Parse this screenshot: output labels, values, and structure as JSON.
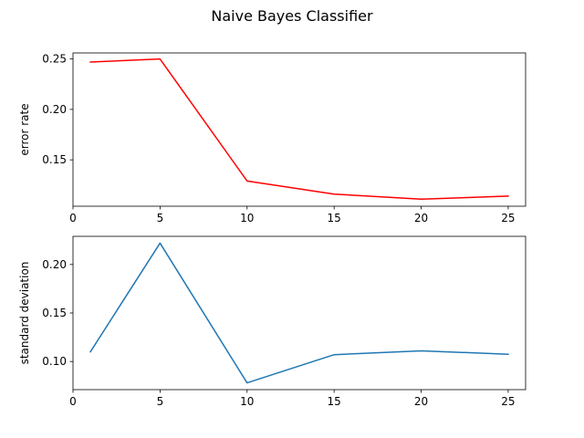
{
  "figure": {
    "title": "Naive Bayes Classifier"
  },
  "chart_data": [
    {
      "type": "line",
      "title": "",
      "xlabel": "",
      "ylabel": "error rate",
      "x": [
        1,
        5,
        10,
        15,
        20,
        25
      ],
      "series": [
        {
          "values": [
            0.247,
            0.25,
            0.129,
            0.116,
            0.111,
            0.114
          ],
          "color": "#ff0000"
        }
      ],
      "xlim": [
        0,
        26
      ],
      "ylim": [
        0.104,
        0.256
      ],
      "xticks": [
        0,
        5,
        10,
        15,
        20,
        25
      ],
      "yticks": [
        0.15,
        0.2,
        0.25
      ],
      "ytick_labels": [
        "0.15",
        "0.20",
        "0.25"
      ],
      "grid": false
    },
    {
      "type": "line",
      "title": "",
      "xlabel": "",
      "ylabel": "standard deviation",
      "x": [
        1,
        5,
        10,
        15,
        20,
        25
      ],
      "series": [
        {
          "values": [
            0.11,
            0.222,
            0.078,
            0.107,
            0.111,
            0.1075
          ],
          "color": "#1f77b4"
        }
      ],
      "xlim": [
        0,
        26
      ],
      "ylim": [
        0.071,
        0.229
      ],
      "xticks": [
        0,
        5,
        10,
        15,
        20,
        25
      ],
      "yticks": [
        0.1,
        0.15,
        0.2
      ],
      "ytick_labels": [
        "0.10",
        "0.15",
        "0.20"
      ],
      "grid": false
    }
  ]
}
